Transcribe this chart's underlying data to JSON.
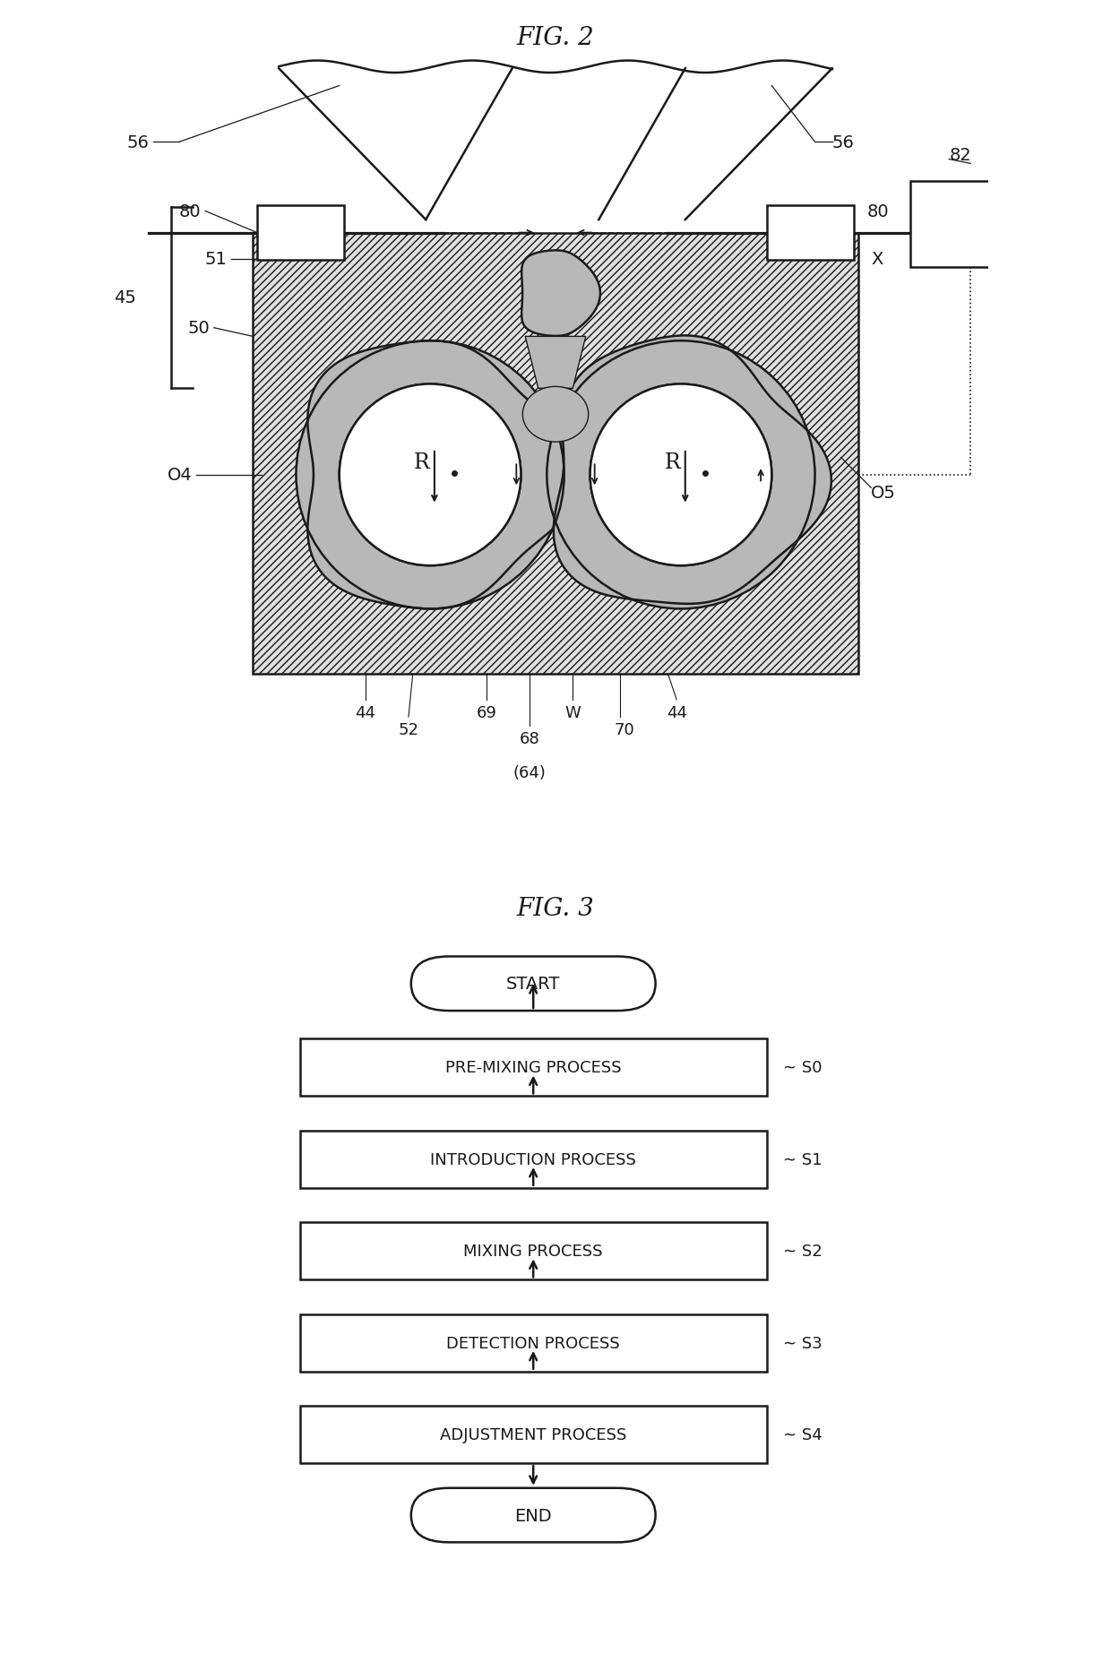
{
  "fig2_title": "FIG. 2",
  "fig3_title": "FIG. 3",
  "bg": "#ffffff",
  "lc": "#1a1a1a",
  "gray_mix": "#b8b8b8",
  "gray_light": "#d4d4d4",
  "flowchart_steps": [
    "PRE-MIXING PROCESS",
    "INTRODUCTION PROCESS",
    "MIXING PROCESS",
    "DETECTION PROCESS",
    "ADJUSTMENT PROCESS"
  ],
  "flowchart_labels": [
    "S0",
    "S1",
    "S2",
    "S3",
    "S4"
  ]
}
